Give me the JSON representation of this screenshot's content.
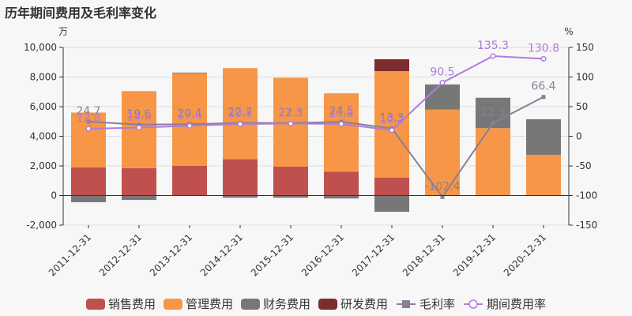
{
  "title": "历年期间费用及毛利率变化",
  "chart_data": {
    "type": "bar",
    "stacked": true,
    "categories": [
      "2011-12-31",
      "2012-12-31",
      "2013-12-31",
      "2014-12-31",
      "2015-12-31",
      "2016-12-31",
      "2017-12-31",
      "2018-12-31",
      "2019-12-31",
      "2020-12-31"
    ],
    "y_left": {
      "unit_label": "万",
      "range": [
        -2000,
        10000
      ],
      "ticks": [
        "-2,000",
        "0",
        "2,000",
        "4,000",
        "6,000",
        "8,000",
        "10,000"
      ]
    },
    "y_right": {
      "unit_label": "%",
      "range": [
        -150,
        150
      ],
      "ticks": [
        "-150",
        "-100",
        "-50",
        "0",
        "50",
        "100",
        "150"
      ]
    },
    "series": [
      {
        "name": "销售费用",
        "kind": "bar",
        "color": "#c0504d",
        "values": [
          1900,
          1850,
          2000,
          2450,
          1950,
          1600,
          1200,
          0,
          0,
          0
        ]
      },
      {
        "name": "管理费用",
        "kind": "bar",
        "color": "#f79646",
        "values": [
          3700,
          5200,
          6250,
          6150,
          6000,
          5300,
          7200,
          5800,
          4550,
          2750
        ]
      },
      {
        "name": "财务费用",
        "kind": "bar",
        "color": "#777777",
        "values": [
          -450,
          -300,
          50,
          -150,
          -150,
          -200,
          -1100,
          1700,
          2050,
          2400
        ]
      },
      {
        "name": "研发费用",
        "kind": "bar",
        "color": "#7b2c2c",
        "values": [
          0,
          0,
          0,
          0,
          0,
          0,
          800,
          0,
          0,
          0
        ]
      },
      {
        "name": "毛利率",
        "kind": "line",
        "axis": "right",
        "color": "#8a7f96",
        "values": [
          24.7,
          19.6,
          20.4,
          22.7,
          22.3,
          24.5,
          13.3,
          -102.4,
          22.3,
          66.4
        ],
        "labels": [
          "24.7",
          "19.6",
          "20.4",
          "22.7",
          "22.3",
          "24.5",
          "13.3",
          "-102.4",
          "22.3",
          "66.4"
        ]
      },
      {
        "name": "期间费用率",
        "kind": "line",
        "axis": "right",
        "color": "#b07cdb",
        "values": [
          12.8,
          14.6,
          17.6,
          20.6,
          21.5,
          20.8,
          10.2,
          90.5,
          135.3,
          130.8
        ],
        "labels": [
          "12.8",
          "14.6",
          "17.6",
          "20.6",
          "21.5",
          "20.8",
          "10.2",
          "90.5",
          "135.3",
          "130.8"
        ]
      }
    ]
  }
}
